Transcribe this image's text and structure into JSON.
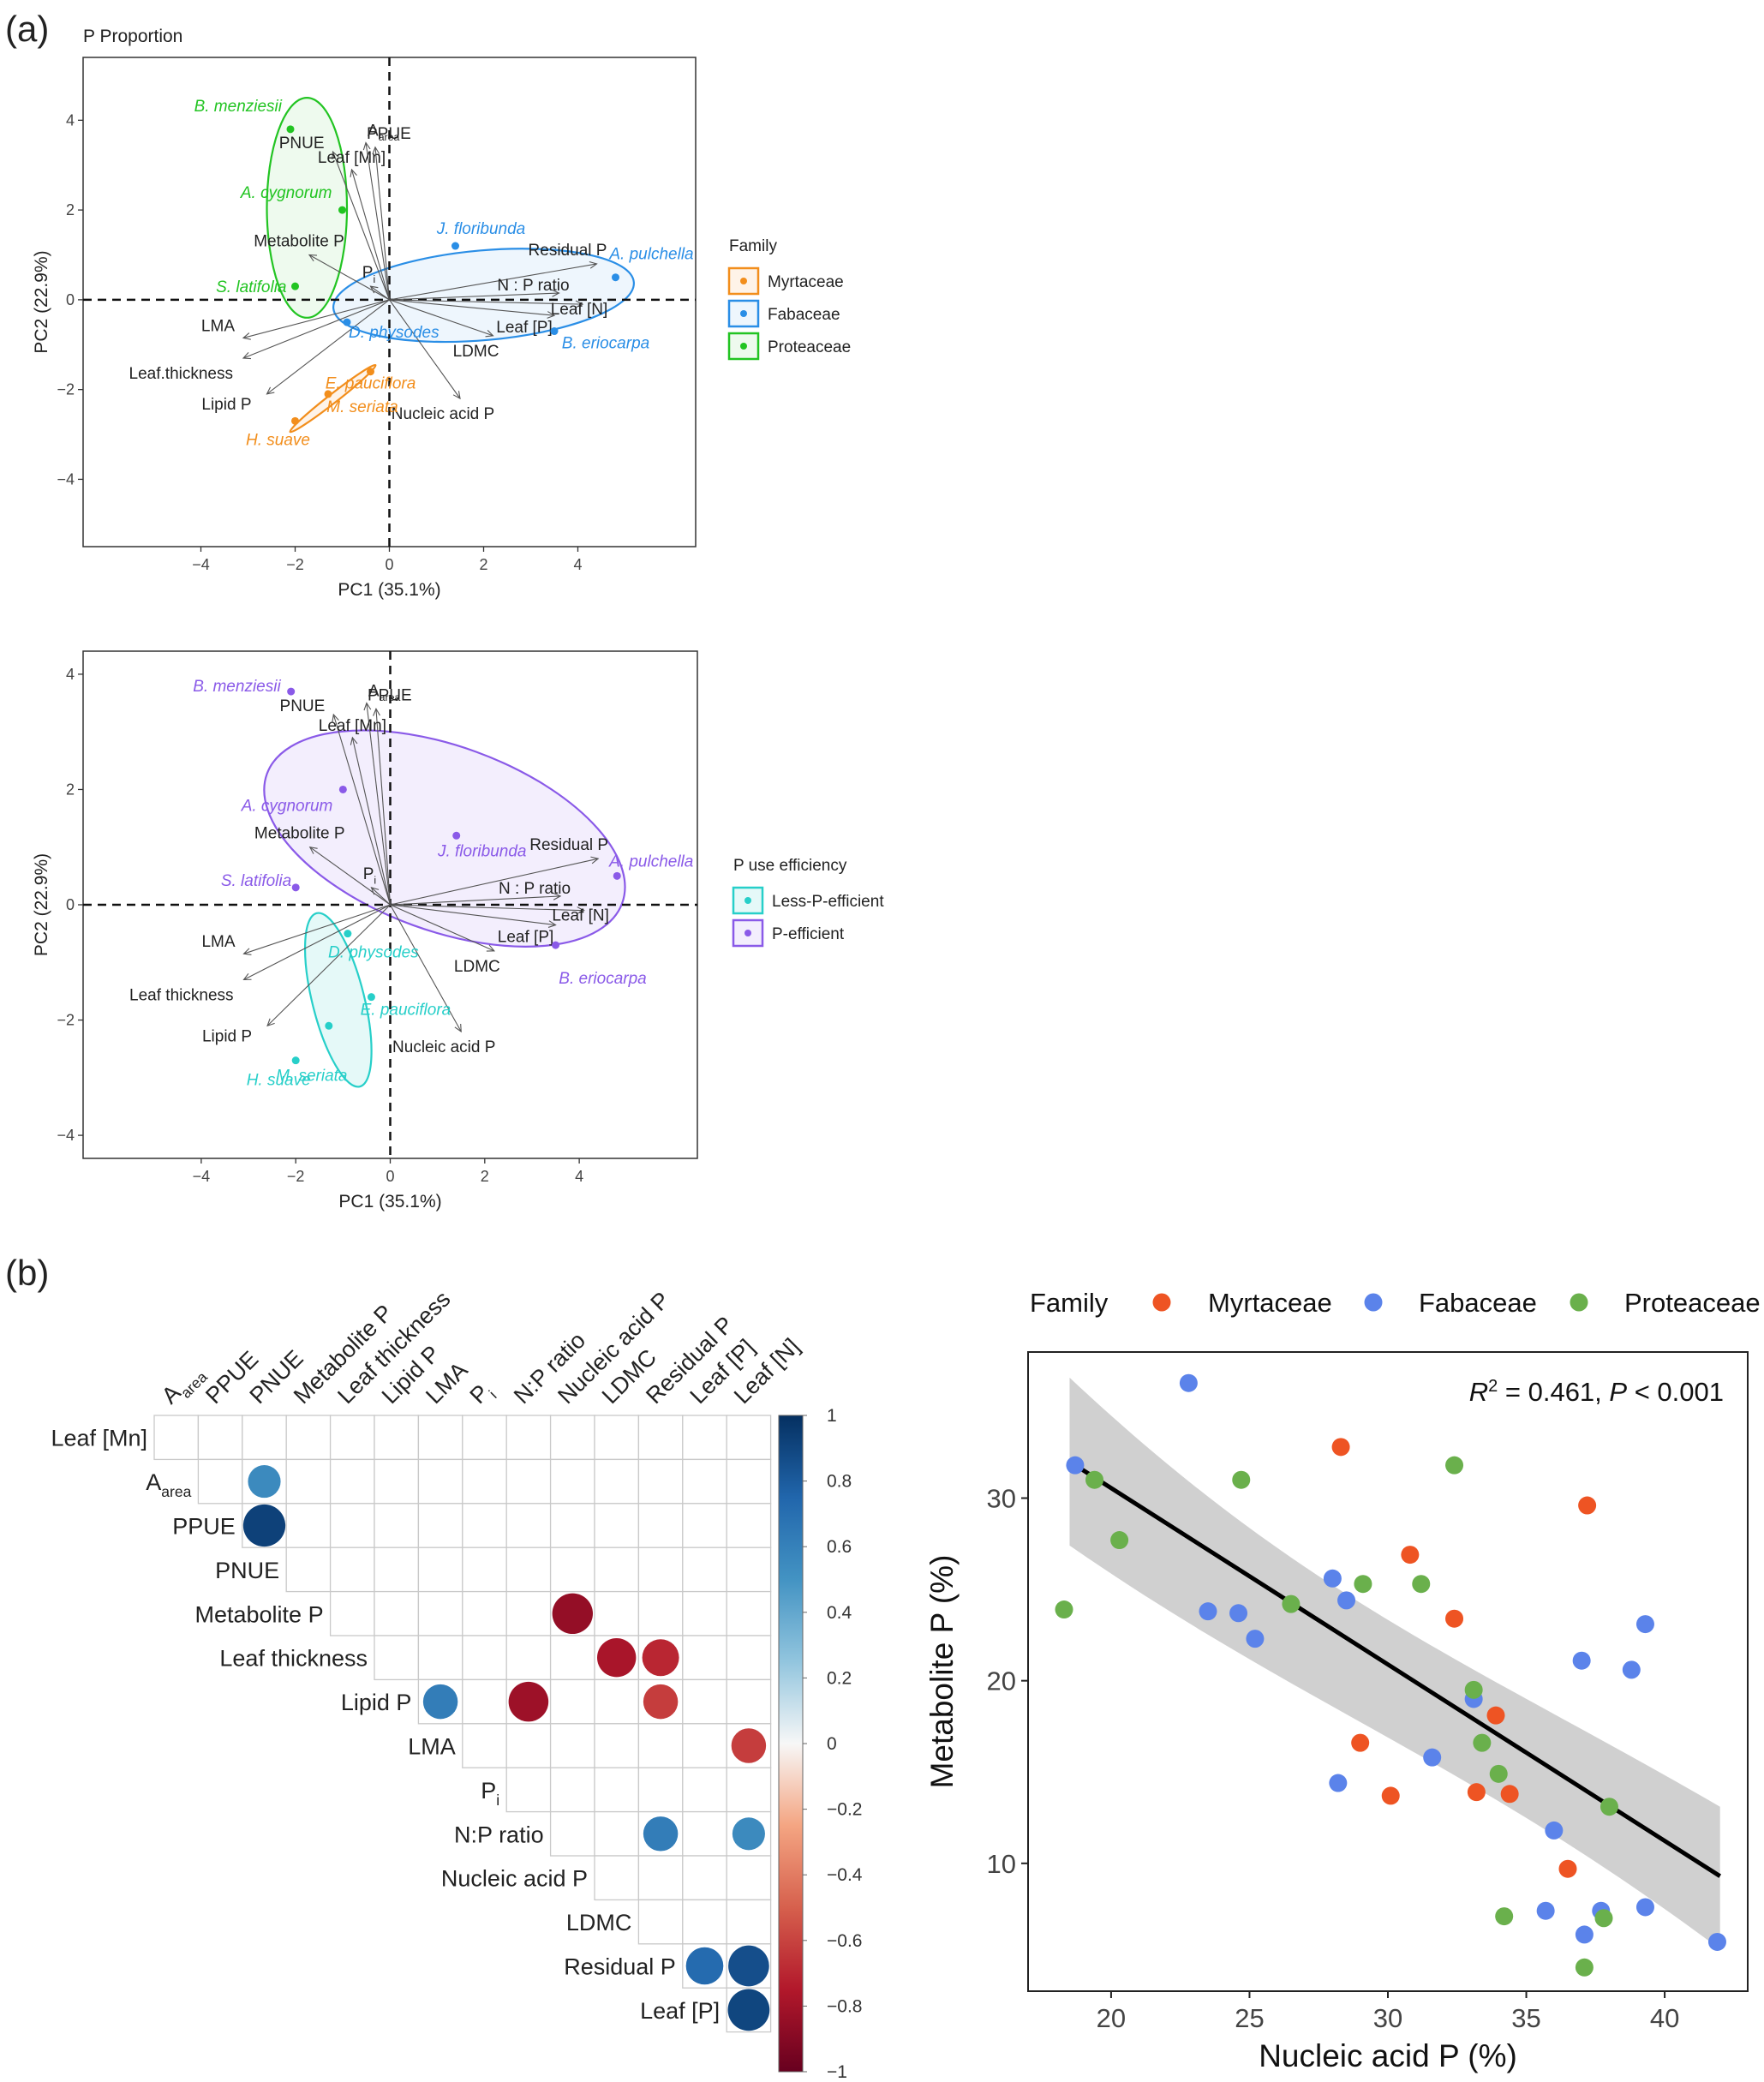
{
  "panel_labels": {
    "a": "(a)",
    "b": "(b)"
  },
  "chart_data": [
    {
      "type": "scatter",
      "subtype": "pca-biplot",
      "title": "P Proportion",
      "xlabel": "PC1 (35.1%)",
      "ylabel": "PC2 (22.9%)",
      "xlim": [
        -6.5,
        6.5
      ],
      "ylim": [
        -5.5,
        5.4
      ],
      "xticks": [
        -4,
        -2,
        0,
        2,
        4
      ],
      "yticks": [
        -4,
        -2,
        0,
        2,
        4
      ],
      "legend": {
        "title": "Family",
        "position": "right",
        "entries": [
          {
            "label": "Myrtaceae",
            "color": "#f28e1c"
          },
          {
            "label": "Fabaceae",
            "color": "#2a8ee6"
          },
          {
            "label": "Proteaceae",
            "color": "#22c422"
          }
        ]
      },
      "species": [
        {
          "name": "B. menziesii",
          "group": "Proteaceae",
          "x": -2.1,
          "y": 3.8
        },
        {
          "name": "A. cygnorum",
          "group": "Proteaceae",
          "x": -1.0,
          "y": 2.0
        },
        {
          "name": "S. latifolia",
          "group": "Proteaceae",
          "x": -2.0,
          "y": 0.3
        },
        {
          "name": "J. floribunda",
          "group": "Fabaceae",
          "x": 1.4,
          "y": 1.2
        },
        {
          "name": "A. pulchella",
          "group": "Fabaceae",
          "x": 4.8,
          "y": 0.5
        },
        {
          "name": "B. eriocarpa",
          "group": "Fabaceae",
          "x": 3.5,
          "y": -0.7
        },
        {
          "name": "D. physodes",
          "group": "Fabaceae",
          "x": -0.9,
          "y": -0.5
        },
        {
          "name": "E. pauciflora",
          "group": "Myrtaceae",
          "x": -0.4,
          "y": -1.6
        },
        {
          "name": "M. seriata",
          "group": "Myrtaceae",
          "x": -1.3,
          "y": -2.1
        },
        {
          "name": "H. suave",
          "group": "Myrtaceae",
          "x": -2.0,
          "y": -2.7
        }
      ],
      "ellipses": [
        {
          "group": "Proteaceae",
          "cx": -1.75,
          "cy": 2.05,
          "rx": 0.85,
          "ry": 2.45,
          "angle": 0
        },
        {
          "group": "Fabaceae",
          "cx": 2.0,
          "cy": 0.1,
          "rx": 3.2,
          "ry": 1.0,
          "angle": 5
        },
        {
          "group": "Myrtaceae",
          "cx": -1.2,
          "cy": -2.2,
          "rx": 1.15,
          "ry": 0.1,
          "angle": 38
        }
      ],
      "vectors": [
        {
          "label": "A_area",
          "x": -0.5,
          "y": 3.5
        },
        {
          "label": "PPUE",
          "x": -0.3,
          "y": 3.4
        },
        {
          "label": "PNUE",
          "x": -1.2,
          "y": 3.3
        },
        {
          "label": "Leaf [Mn]",
          "x": -0.8,
          "y": 2.9
        },
        {
          "label": "Metabolite P",
          "x": -1.7,
          "y": 1.0
        },
        {
          "label": "P_i",
          "x": -0.4,
          "y": 0.3
        },
        {
          "label": "Residual P",
          "x": 4.4,
          "y": 0.8
        },
        {
          "label": "N : P ratio",
          "x": 3.6,
          "y": 0.15
        },
        {
          "label": "Leaf [N]",
          "x": 4.1,
          "y": -0.1
        },
        {
          "label": "Leaf [P]",
          "x": 3.5,
          "y": -0.35
        },
        {
          "label": "LDMC",
          "x": 2.2,
          "y": -0.8
        },
        {
          "label": "Nucleic acid P",
          "x": 1.5,
          "y": -2.2
        },
        {
          "label": "LMA",
          "x": -3.1,
          "y": -0.85
        },
        {
          "label": "Leaf.thickness",
          "x": -3.1,
          "y": -1.3
        },
        {
          "label": "Lipid P",
          "x": -2.6,
          "y": -2.1
        }
      ]
    },
    {
      "type": "scatter",
      "subtype": "pca-biplot",
      "xlabel": "PC1 (35.1%)",
      "ylabel": "PC2 (22.9%)",
      "xlim": [
        -6.5,
        6.5
      ],
      "ylim": [
        -4.4,
        4.4
      ],
      "xticks": [
        -4,
        -2,
        0,
        2,
        4
      ],
      "yticks": [
        -4,
        -2,
        0,
        2,
        4
      ],
      "legend": {
        "title": "P use efficiency",
        "position": "right",
        "entries": [
          {
            "label": "Less-P-efficient",
            "color": "#27cfc9"
          },
          {
            "label": "P-efficient",
            "color": "#8a5ae8"
          }
        ]
      },
      "species": [
        {
          "name": "B. menziesii",
          "group": "P-efficient",
          "x": -2.1,
          "y": 3.7
        },
        {
          "name": "A. cygnorum",
          "group": "P-efficient",
          "x": -1.0,
          "y": 2.0
        },
        {
          "name": "J. floribunda",
          "group": "P-efficient",
          "x": 1.4,
          "y": 1.2
        },
        {
          "name": "S. latifolia",
          "group": "P-efficient",
          "x": -2.0,
          "y": 0.3
        },
        {
          "name": "A. pulchella",
          "group": "P-efficient",
          "x": 4.8,
          "y": 0.5
        },
        {
          "name": "B. eriocarpa",
          "group": "P-efficient",
          "x": 3.5,
          "y": -0.7
        },
        {
          "name": "D. physodes",
          "group": "Less-P-efficient",
          "x": -0.9,
          "y": -0.5
        },
        {
          "name": "E. pauciflora",
          "group": "Less-P-efficient",
          "x": -0.4,
          "y": -1.6
        },
        {
          "name": "M. seriata",
          "group": "Less-P-efficient",
          "x": -1.3,
          "y": -2.1
        },
        {
          "name": "H. suave",
          "group": "Less-P-efficient",
          "x": -2.0,
          "y": -2.7
        }
      ],
      "ellipses": [
        {
          "group": "P-efficient",
          "cx": 1.15,
          "cy": 1.15,
          "rx": 4.0,
          "ry": 1.6,
          "angle": -20
        },
        {
          "group": "Less-P-efficient",
          "cx": -1.1,
          "cy": -1.65,
          "rx": 0.55,
          "ry": 1.55,
          "angle": 14
        }
      ],
      "vectors": [
        {
          "label": "A_area",
          "x": -0.5,
          "y": 3.5
        },
        {
          "label": "PPUE",
          "x": -0.3,
          "y": 3.4
        },
        {
          "label": "PNUE",
          "x": -1.2,
          "y": 3.3
        },
        {
          "label": "Leaf [Mn]",
          "x": -0.8,
          "y": 2.9
        },
        {
          "label": "Metabolite P",
          "x": -1.7,
          "y": 1.0
        },
        {
          "label": "P_i",
          "x": -0.4,
          "y": 0.3
        },
        {
          "label": "Residual P",
          "x": 4.4,
          "y": 0.8
        },
        {
          "label": "N : P ratio",
          "x": 3.6,
          "y": 0.15
        },
        {
          "label": "Leaf [N]",
          "x": 4.1,
          "y": -0.1
        },
        {
          "label": "Leaf [P]",
          "x": 3.5,
          "y": -0.35
        },
        {
          "label": "LDMC",
          "x": 2.2,
          "y": -0.8
        },
        {
          "label": "Nucleic acid P",
          "x": 1.5,
          "y": -2.2
        },
        {
          "label": "LMA",
          "x": -3.1,
          "y": -0.85
        },
        {
          "label": "Leaf thickness",
          "x": -3.1,
          "y": -1.3
        },
        {
          "label": "Lipid P",
          "x": -2.6,
          "y": -2.1
        }
      ]
    },
    {
      "type": "heatmap",
      "subtype": "correlation-matrix",
      "column_labels": [
        "A_area",
        "PPUE",
        "PNUE",
        "Metabolite P",
        "Leaf thickness",
        "Lipid P",
        "LMA",
        "P_i",
        "N:P ratio",
        "Nucleic acid P",
        "LDMC",
        "Residual P",
        "Leaf [P]",
        "Leaf [N]"
      ],
      "row_labels": [
        "Leaf [Mn]",
        "A_area",
        "PPUE",
        "PNUE",
        "Metabolite P",
        "Leaf thickness",
        "Lipid P",
        "LMA",
        "P_i",
        "N:P ratio",
        "Nucleic acid P",
        "LDMC",
        "Residual P",
        "Leaf [P]"
      ],
      "significant_correlations": [
        {
          "row": "A_area",
          "col": "PNUE",
          "r": 0.55
        },
        {
          "row": "PPUE",
          "col": "PNUE",
          "r": 0.92
        },
        {
          "row": "Metabolite P",
          "col": "Nucleic acid P",
          "r": -0.85
        },
        {
          "row": "Leaf thickness",
          "col": "LDMC",
          "r": -0.78
        },
        {
          "row": "Leaf thickness",
          "col": "Residual P",
          "r": -0.7
        },
        {
          "row": "Lipid P",
          "col": "LMA",
          "r": 0.62
        },
        {
          "row": "Lipid P",
          "col": "N:P ratio",
          "r": -0.82
        },
        {
          "row": "Lipid P",
          "col": "Residual P",
          "r": -0.62
        },
        {
          "row": "LMA",
          "col": "Leaf [N]",
          "r": -0.62
        },
        {
          "row": "N:P ratio",
          "col": "Residual P",
          "r": 0.62
        },
        {
          "row": "N:P ratio",
          "col": "Leaf [N]",
          "r": 0.55
        },
        {
          "row": "Residual P",
          "col": "Leaf [P]",
          "r": 0.72
        },
        {
          "row": "Residual P",
          "col": "Leaf [N]",
          "r": 0.86
        },
        {
          "row": "Leaf [P]",
          "col": "Leaf [N]",
          "r": 0.9
        }
      ],
      "colorbar": {
        "ticks": [
          "1",
          "0.8",
          "0.6",
          "0.4",
          "0.2",
          "0",
          "−0.2",
          "−0.4",
          "−0.6",
          "−0.8",
          "−1"
        ],
        "range": [
          -1,
          1
        ]
      }
    },
    {
      "type": "scatter",
      "xlabel": "Nucleic acid P (%)",
      "ylabel": "Metabolite P (%)",
      "xlim": [
        17,
        43
      ],
      "ylim": [
        3,
        38
      ],
      "xticks": [
        20,
        25,
        30,
        35,
        40
      ],
      "yticks": [
        10,
        20,
        30
      ],
      "annotation": {
        "r2_label": "R",
        "r2_sup": "2",
        "r2_value": " = 0.461, ",
        "p_label": "P",
        "p_value": " < 0.001"
      },
      "legend": {
        "title": "Family",
        "position": "top",
        "entries": [
          {
            "label": "Myrtaceae",
            "color": "#ee5423"
          },
          {
            "label": "Fabaceae",
            "color": "#5b83ea"
          },
          {
            "label": "Proteaceae",
            "color": "#6ab04c"
          }
        ]
      },
      "fit": {
        "x": [
          18.5,
          42
        ],
        "y": [
          32.0,
          9.3
        ],
        "ci_upper": [
          36.6,
          13.1
        ],
        "ci_lower": [
          27.4,
          5.3
        ]
      },
      "series": [
        {
          "name": "Myrtaceae",
          "points": [
            [
              28.3,
              32.8
            ],
            [
              37.2,
              29.6
            ],
            [
              30.8,
              26.9
            ],
            [
              32.4,
              23.4
            ],
            [
              29.0,
              16.6
            ],
            [
              30.1,
              13.7
            ],
            [
              33.2,
              13.9
            ],
            [
              34.4,
              13.8
            ],
            [
              33.9,
              18.1
            ],
            [
              36.5,
              9.7
            ]
          ]
        },
        {
          "name": "Fabaceae",
          "points": [
            [
              22.8,
              36.3
            ],
            [
              18.7,
              31.8
            ],
            [
              23.5,
              23.8
            ],
            [
              24.6,
              23.7
            ],
            [
              25.2,
              22.3
            ],
            [
              28.0,
              25.6
            ],
            [
              28.5,
              24.4
            ],
            [
              28.2,
              14.4
            ],
            [
              31.6,
              15.8
            ],
            [
              33.1,
              19.0
            ],
            [
              36.0,
              11.8
            ],
            [
              37.0,
              21.1
            ],
            [
              38.8,
              20.6
            ],
            [
              39.3,
              23.1
            ],
            [
              35.7,
              7.4
            ],
            [
              37.1,
              6.1
            ],
            [
              37.7,
              7.4
            ],
            [
              39.3,
              7.6
            ],
            [
              41.9,
              5.7
            ]
          ]
        },
        {
          "name": "Proteaceae",
          "points": [
            [
              18.3,
              23.9
            ],
            [
              19.4,
              31.0
            ],
            [
              20.3,
              27.7
            ],
            [
              24.7,
              31.0
            ],
            [
              26.5,
              24.2
            ],
            [
              29.1,
              25.3
            ],
            [
              31.2,
              25.3
            ],
            [
              32.4,
              31.8
            ],
            [
              33.1,
              19.5
            ],
            [
              33.4,
              16.6
            ],
            [
              34.0,
              14.9
            ],
            [
              34.2,
              7.1
            ],
            [
              37.1,
              4.3
            ],
            [
              37.8,
              7.0
            ],
            [
              38.0,
              13.1
            ]
          ]
        }
      ]
    }
  ]
}
